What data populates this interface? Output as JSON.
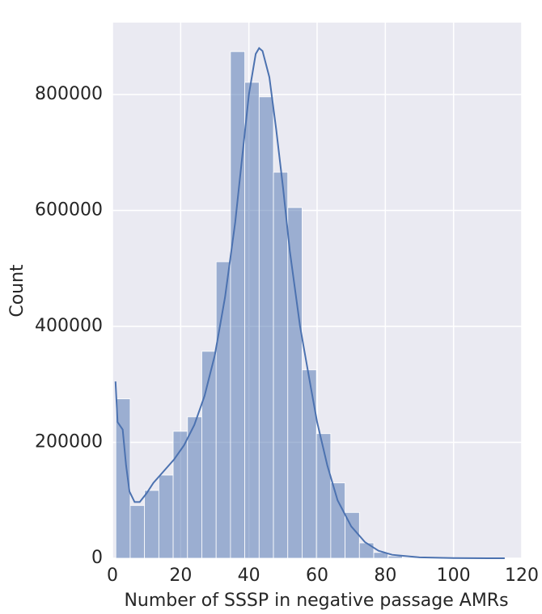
{
  "chart_data": {
    "type": "histogram",
    "xlabel": "Number of SSSP in negative passage AMRs",
    "ylabel": "Count",
    "bins": [
      1,
      5.2,
      9.4,
      13.6,
      17.8,
      22,
      26.2,
      30.4,
      34.6,
      38.8,
      43,
      47.2,
      51.4,
      55.6,
      59.8,
      64,
      68.2,
      72.4,
      76.6,
      80.8,
      85,
      89.2,
      93.4,
      97.6,
      101.8,
      106,
      110.2,
      114.4
    ],
    "counts": [
      275000,
      91000,
      117000,
      143500,
      219000,
      244000,
      357000,
      511500,
      874000,
      821000,
      796000,
      666000,
      605000,
      325000,
      215000,
      130000,
      79000,
      26500,
      10000,
      4000,
      1500,
      600,
      200,
      100,
      50,
      20,
      10
    ],
    "color": "#4c72b0",
    "kde": {
      "x": [
        0.9,
        1.5,
        3,
        4,
        5,
        6.5,
        8,
        10,
        12,
        15,
        18,
        21,
        24,
        27,
        30,
        33,
        36,
        38,
        40,
        42,
        43,
        44,
        46,
        48,
        50,
        52,
        55,
        58,
        60,
        63,
        66,
        70,
        74,
        78,
        82,
        90,
        100,
        110,
        115
      ],
      "y": [
        305000,
        235000,
        222000,
        160000,
        115000,
        97000,
        97000,
        112000,
        130000,
        150000,
        170000,
        195000,
        230000,
        280000,
        350000,
        450000,
        580000,
        690000,
        800000,
        870000,
        880000,
        875000,
        830000,
        740000,
        640000,
        530000,
        400000,
        300000,
        235000,
        160000,
        100000,
        55000,
        28000,
        13000,
        6000,
        1500,
        300,
        50,
        0
      ]
    },
    "xlim": [
      0,
      120
    ],
    "ylim": [
      0,
      924000
    ],
    "xticks": [
      0,
      20,
      40,
      60,
      80,
      100,
      120
    ],
    "yticks": [
      0,
      200000,
      400000,
      600000,
      800000
    ],
    "grid": true
  }
}
